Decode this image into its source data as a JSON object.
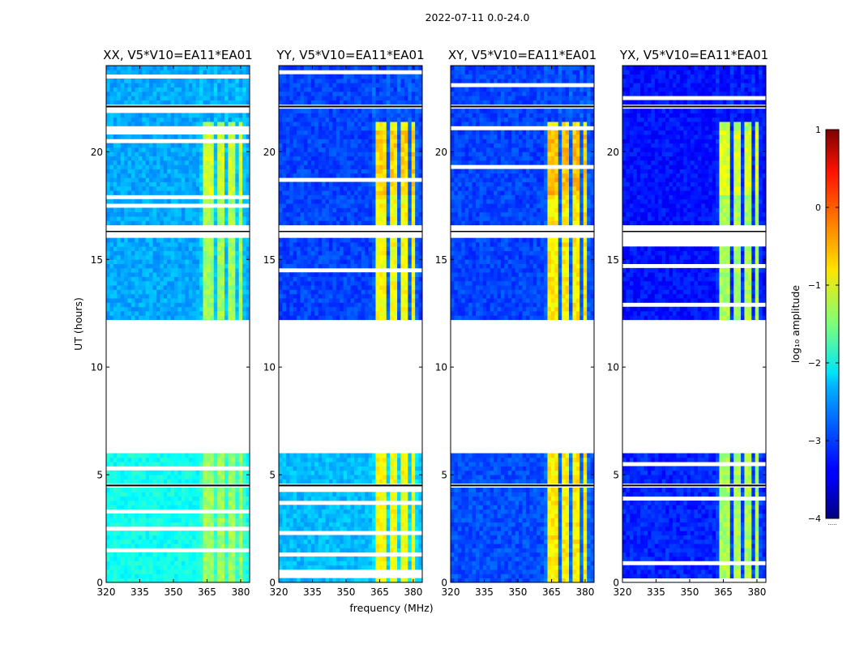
{
  "chart_data": {
    "type": "heatmap",
    "suptitle": "2022-07-11 0.0-24.0",
    "xlabel": "frequency (MHz)",
    "ylabel": "UT (hours)",
    "xlim": [
      320,
      384
    ],
    "ylim": [
      0,
      24
    ],
    "xticks": [
      320,
      335,
      350,
      365,
      380
    ],
    "yticks": [
      0,
      5,
      10,
      15,
      20
    ],
    "panels": [
      {
        "title": "XX, V5*V10=EA11*EA01",
        "base_low": -2.05,
        "base_high": -2.55,
        "rfi_level": -1.35
      },
      {
        "title": "YY, V5*V10=EA11*EA01",
        "base_low": -2.45,
        "base_high": -3.05,
        "rfi_level": -0.9
      },
      {
        "title": "XY, V5*V10=EA11*EA01",
        "base_low": -3.0,
        "base_high": -3.05,
        "rfi_level": -0.8
      },
      {
        "title": "YX, V5*V10=EA11*EA01",
        "base_low": -3.2,
        "base_high": -3.3,
        "rfi_level": -1.3
      }
    ],
    "data_gap_hours": [
      [
        6.0,
        12.2
      ],
      [
        4.45,
        4.6
      ],
      [
        16.1,
        16.5
      ],
      [
        22.0,
        22.2
      ]
    ],
    "rfi_bands_mhz": [
      [
        363.5,
        367.5
      ],
      [
        369.5,
        372
      ],
      [
        374,
        377.5
      ],
      [
        378.5,
        381.5
      ]
    ],
    "colorbar": {
      "label": "log₁₀ amplitude",
      "range": [
        -4,
        1
      ],
      "ticks": [
        1,
        0,
        -1,
        -2,
        -3,
        -4
      ],
      "tick_labels": [
        "1",
        "0",
        "−1",
        "−2",
        "−3",
        "−4"
      ],
      "colormap": "jet",
      "under_note": "....."
    }
  }
}
